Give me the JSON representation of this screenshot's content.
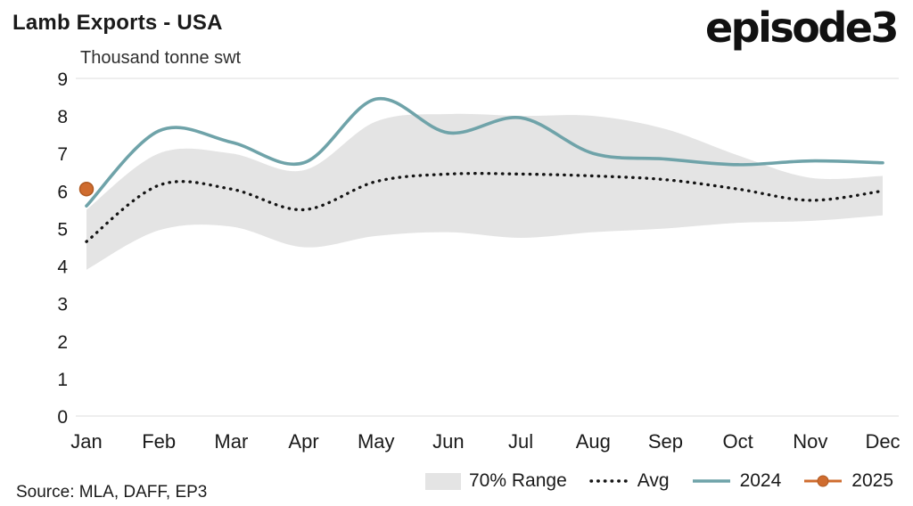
{
  "header": {
    "title": "Lamb Exports - USA",
    "logo": "episode3"
  },
  "chart_data": {
    "type": "line",
    "title": "Lamb Exports - USA",
    "subtitle": "Thousand tonne swt",
    "categories": [
      "Jan",
      "Feb",
      "Mar",
      "Apr",
      "May",
      "Jun",
      "Jul",
      "Aug",
      "Sep",
      "Oct",
      "Nov",
      "Dec"
    ],
    "ylim": [
      0,
      9
    ],
    "yticks": [
      0,
      1,
      2,
      3,
      4,
      5,
      6,
      7,
      8,
      9
    ],
    "grid": "minimal (top and bottom rule only)",
    "legend_position": "bottom",
    "series": [
      {
        "name": "70% Range",
        "style": "band",
        "color": "#e4e4e4",
        "upper": [
          5.5,
          7.0,
          7.0,
          6.55,
          7.85,
          8.05,
          8.0,
          8.0,
          7.65,
          6.95,
          6.35,
          6.4
        ],
        "lower": [
          3.9,
          4.95,
          5.05,
          4.5,
          4.8,
          4.9,
          4.75,
          4.9,
          5.0,
          5.15,
          5.2,
          5.35
        ]
      },
      {
        "name": "Avg",
        "style": "dotted",
        "color": "#141414",
        "values": [
          4.65,
          6.15,
          6.05,
          5.5,
          6.25,
          6.45,
          6.45,
          6.4,
          6.3,
          6.05,
          5.75,
          6.0
        ]
      },
      {
        "name": "2024",
        "style": "solid",
        "color": "#6fa3a9",
        "values": [
          5.6,
          7.6,
          7.3,
          6.75,
          8.45,
          7.55,
          7.95,
          7.0,
          6.85,
          6.7,
          6.8,
          6.75
        ]
      },
      {
        "name": "2025",
        "style": "point",
        "color": "#cf6c2f",
        "point_stroke": "#b05a22",
        "values": [
          6.05,
          null,
          null,
          null,
          null,
          null,
          null,
          null,
          null,
          null,
          null,
          null
        ]
      }
    ]
  },
  "footer": {
    "source": "Source: MLA, DAFF, EP3"
  }
}
